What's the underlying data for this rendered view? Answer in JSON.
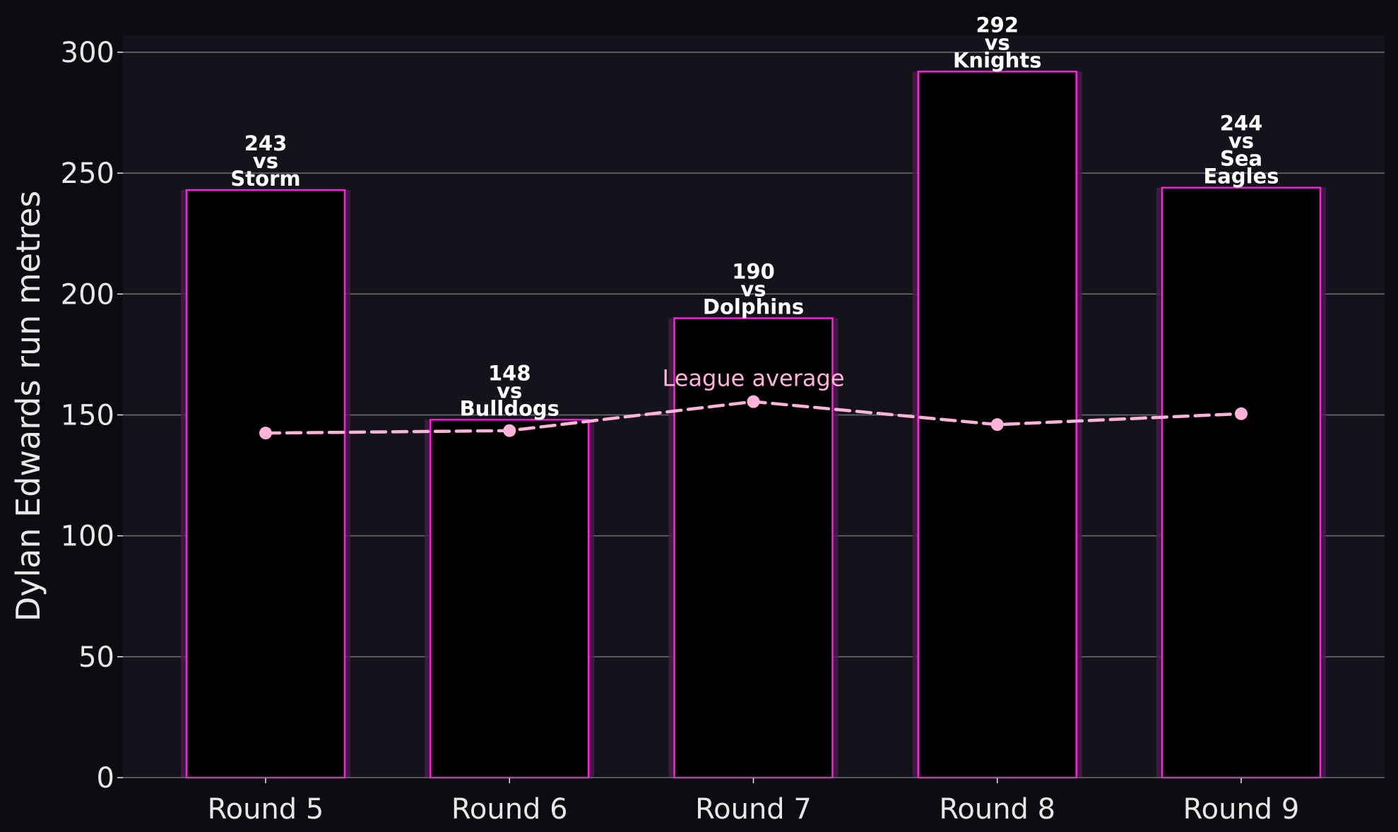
{
  "chart_data": {
    "type": "bar",
    "categories": [
      "Round 5",
      "Round 6",
      "Round 7",
      "Round 8",
      "Round 9"
    ],
    "values": [
      243,
      148,
      190,
      292,
      244
    ],
    "opponents": [
      "Storm",
      "Bulldogs",
      "Dolphins",
      "Knights",
      "Sea Eagles"
    ],
    "bar_labels": [
      [
        "243",
        "vs",
        "Storm"
      ],
      [
        "148",
        "vs",
        "Bulldogs"
      ],
      [
        "190",
        "vs",
        "Dolphins"
      ],
      [
        "292",
        "vs",
        "Knights"
      ],
      [
        "244",
        "vs",
        "Sea",
        "Eagles"
      ]
    ],
    "league_average": {
      "label": "League average",
      "values": [
        142.5,
        143.5,
        155.5,
        146,
        150.5
      ]
    },
    "title": "",
    "xlabel": "",
    "ylabel": "Dylan Edwards run metres",
    "ylim": [
      0,
      307
    ],
    "yticks": [
      0,
      50,
      100,
      150,
      200,
      250,
      300
    ],
    "grid": "horizontal",
    "colors": {
      "page_background": "#0c0c10",
      "plot_background": "#13141b",
      "bar_fill": "#000000",
      "bar_edge": "#ff1fdc",
      "bar_glow": "#4a1a4a",
      "grid": "#6f6f74",
      "average_line": "#ffb3d9",
      "text": "#e8e8e8",
      "annotation_text": "#ffffff"
    }
  }
}
